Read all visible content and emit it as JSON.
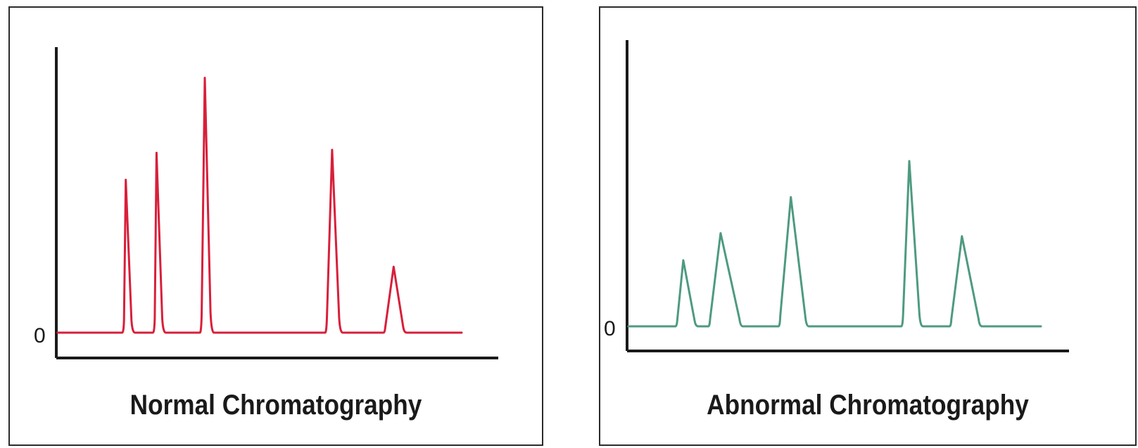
{
  "chart_data": [
    {
      "type": "line",
      "title": "Normal Chromatography",
      "color": "#d81f3a",
      "y_tick_label": "0",
      "axis_x_range": [
        0,
        100
      ],
      "axis_y_range": [
        -8,
        100
      ],
      "baseline": 0,
      "x_start": 0,
      "x_end": 92,
      "peaks": [
        {
          "position": 15.5,
          "height": 51,
          "width_left": 0.5,
          "width_right": 1.5
        },
        {
          "position": 22.5,
          "height": 60,
          "width_left": 0.5,
          "width_right": 1.5
        },
        {
          "position": 33.5,
          "height": 85,
          "width_left": 0.8,
          "width_right": 1.5
        },
        {
          "position": 62.5,
          "height": 61,
          "width_left": 1.3,
          "width_right": 1.8
        },
        {
          "position": 76.5,
          "height": 22,
          "width_left": 2.0,
          "width_right": 2.4
        }
      ]
    },
    {
      "type": "line",
      "title": "Abnormal Chromatography",
      "color": "#4e9a80",
      "y_tick_label": "0",
      "axis_x_range": [
        0,
        100
      ],
      "axis_y_range": [
        -8,
        100
      ],
      "baseline": 0,
      "x_start": 0,
      "x_end": 94,
      "peaks": [
        {
          "position": 12.5,
          "height": 22,
          "width_left": 1.5,
          "width_right": 2.8
        },
        {
          "position": 21,
          "height": 31,
          "width_left": 2.5,
          "width_right": 4.5
        },
        {
          "position": 37,
          "height": 43,
          "width_left": 2.5,
          "width_right": 3.5
        },
        {
          "position": 64,
          "height": 55,
          "width_left": 1.5,
          "width_right": 2.5
        },
        {
          "position": 76,
          "height": 30,
          "width_left": 2.5,
          "width_right": 4.0
        }
      ]
    }
  ]
}
